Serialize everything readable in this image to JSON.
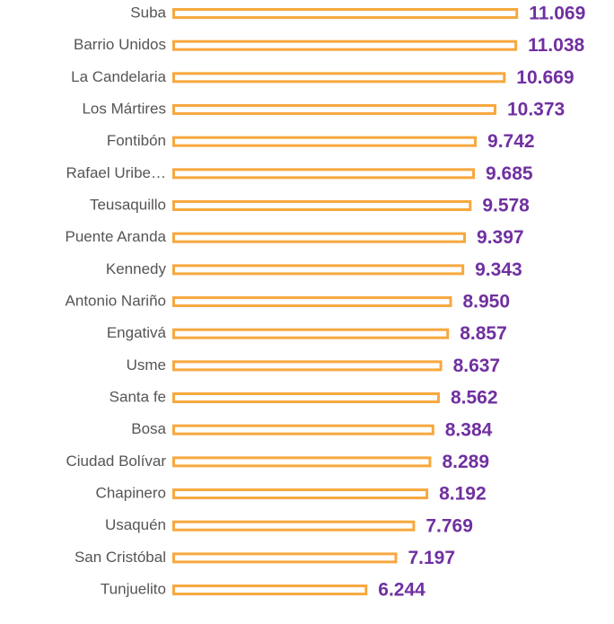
{
  "chart_data": {
    "type": "bar",
    "orientation": "horizontal",
    "categories": [
      "Suba",
      "Barrio Unidos",
      "La Candelaria",
      "Los Mártires",
      "Fontibón",
      "Rafael Uribe…",
      "Teusaquillo",
      "Puente Aranda",
      "Kennedy",
      "Antonio Nariño",
      "Engativá",
      "Usme",
      "Santa fe",
      "Bosa",
      "Ciudad Bolívar",
      "Chapinero",
      "Usaquén",
      "San Cristóbal",
      "Tunjuelito"
    ],
    "values": [
      11.069,
      11.038,
      10.669,
      10.373,
      9.742,
      9.685,
      9.578,
      9.397,
      9.343,
      8.95,
      8.857,
      8.637,
      8.562,
      8.384,
      8.289,
      8.192,
      7.769,
      7.197,
      6.244
    ],
    "value_labels": [
      "11.069",
      "11.038",
      "10.669",
      "10.373",
      "9.742",
      "9.685",
      "9.578",
      "9.397",
      "9.343",
      "8.950",
      "8.857",
      "8.637",
      "8.562",
      "8.384",
      "8.289",
      "8.192",
      "7.769",
      "7.197",
      "6.244"
    ],
    "color": "#f7a83e",
    "label_color": "#7030a0",
    "xlim": [
      0,
      12
    ]
  }
}
